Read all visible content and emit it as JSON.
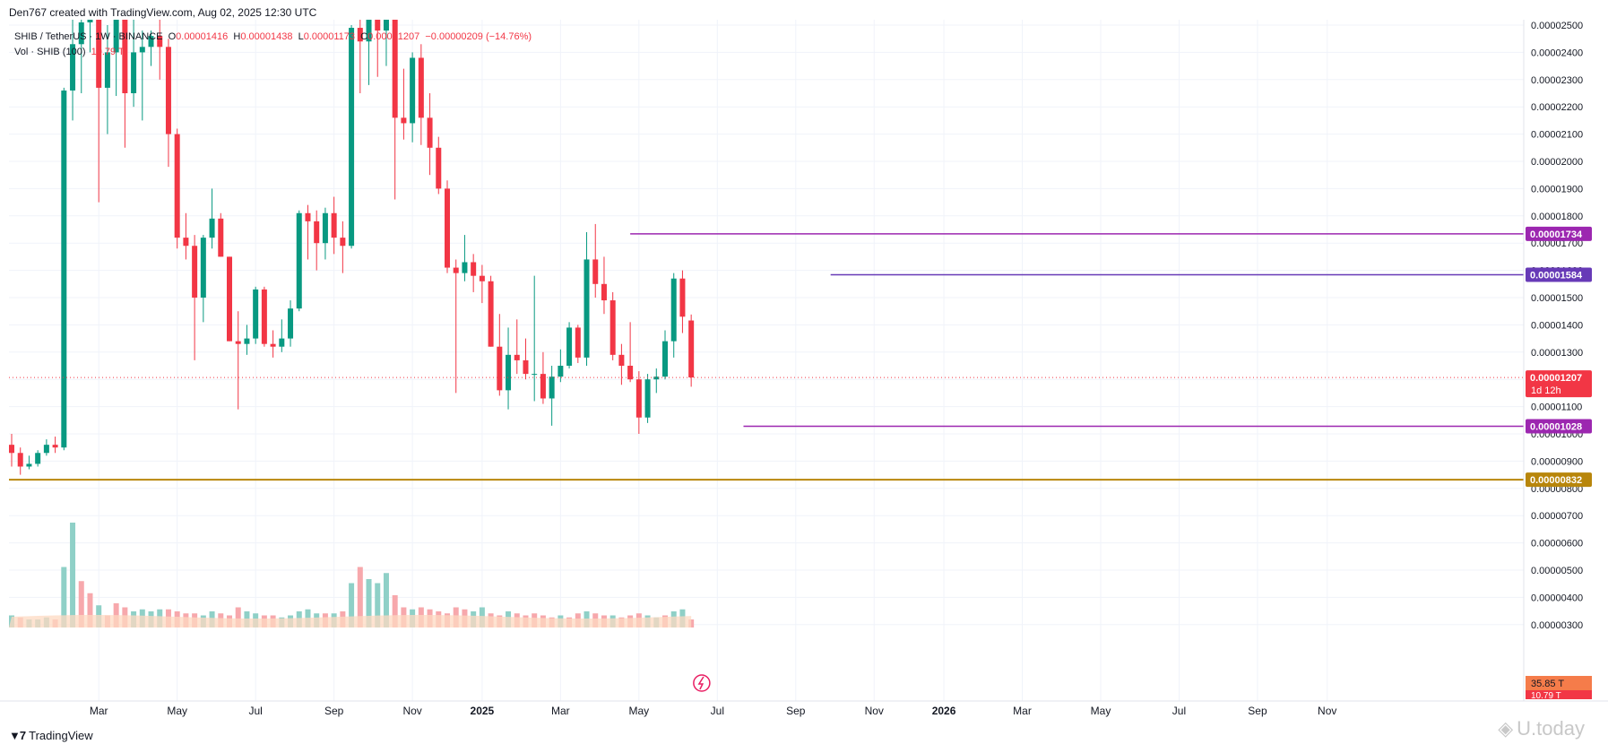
{
  "header": {
    "created_by": "Den767 created with TradingView.com, Aug 02, 2025 12:30 UTC"
  },
  "legend": {
    "symbol_line": "SHIB / TetherUS · 1W · BINANCE",
    "o_label": "O",
    "o_value": "0.00001416",
    "h_label": "H",
    "h_value": "0.00001438",
    "l_label": "L",
    "l_value": "0.00001173",
    "c_label": "C",
    "c_value": "0.00001207",
    "change": "−0.00000209 (−14.76%)",
    "vol_line": "Vol · SHIB (100)",
    "vol_value": "10.79 T",
    "vol_avg": "35.85 T"
  },
  "footer": {
    "brand": "TradingView",
    "watermark": "U.today"
  },
  "colors": {
    "up": "#089981",
    "down": "#f23645",
    "purple_line": "#9c27b0",
    "indigo_line": "#673ab7",
    "gold_line": "#b8860b",
    "vol_up": "#8fd0c7",
    "vol_down": "#f7a8ac",
    "vol_ma": "#fdd9c2"
  },
  "chart_data": {
    "type": "candlestick",
    "symbol": "SHIB / TetherUS",
    "interval": "1W",
    "exchange": "BINANCE",
    "y_axis": {
      "min": 2.5e-06,
      "max": 2.5e-05,
      "ticks": [
        "0.00002500",
        "0.00002400",
        "0.00002300",
        "0.00002200",
        "0.00002100",
        "0.00002000",
        "0.00001900",
        "0.00001800",
        "0.00001700",
        "0.00001600",
        "0.00001500",
        "0.00001400",
        "0.00001300",
        "0.00001200",
        "0.00001100",
        "0.00001000",
        "0.00000900",
        "0.00000800",
        "0.00000700",
        "0.00000600",
        "0.00000500",
        "0.00000400",
        "0.00000300"
      ]
    },
    "x_axis": {
      "labels": [
        {
          "label": "Mar",
          "week": 10
        },
        {
          "label": "May",
          "week": 19
        },
        {
          "label": "Jul",
          "week": 28
        },
        {
          "label": "Sep",
          "week": 37
        },
        {
          "label": "Nov",
          "week": 46
        },
        {
          "label": "2025",
          "week": 54
        },
        {
          "label": "Mar",
          "week": 63
        },
        {
          "label": "May",
          "week": 72
        },
        {
          "label": "Jul",
          "week": 81
        },
        {
          "label": "Sep",
          "week": 90
        },
        {
          "label": "Nov",
          "week": 99
        },
        {
          "label": "2026",
          "week": 107
        },
        {
          "label": "Mar",
          "week": 116
        },
        {
          "label": "May",
          "week": 125
        },
        {
          "label": "Jul",
          "week": 134
        },
        {
          "label": "Sep",
          "week": 143
        },
        {
          "label": "Nov",
          "week": 151
        }
      ]
    },
    "horizontal_lines": [
      {
        "price": 1.734e-05,
        "label": "0.00001734",
        "color": "#9c27b0",
        "start_week": 71
      },
      {
        "price": 1.584e-05,
        "label": "0.00001584",
        "color": "#673ab7",
        "start_week": 94
      },
      {
        "price": 1.028e-05,
        "label": "0.00001028",
        "color": "#9c27b0",
        "start_week": 84
      },
      {
        "price": 8.32e-06,
        "label": "0.00000832",
        "color": "#b8860b",
        "start_week": 0
      }
    ],
    "last_price": {
      "price": 1.207e-05,
      "label": "0.00001207",
      "countdown": "1d 12h"
    },
    "candles": [
      [
        9.6e-06,
        1e-05,
        8.8e-06,
        9.3e-06
      ],
      [
        9.3e-06,
        9.5e-06,
        8.5e-06,
        8.8e-06
      ],
      [
        8.8e-06,
        9.2e-06,
        8.7e-06,
        8.9e-06
      ],
      [
        8.9e-06,
        9.4e-06,
        8.8e-06,
        9.3e-06
      ],
      [
        9.3e-06,
        9.8e-06,
        9.2e-06,
        9.6e-06
      ],
      [
        9.6e-06,
        9.9e-06,
        9.3e-06,
        9.5e-06
      ],
      [
        9.5e-06,
        2.27e-05,
        9.4e-06,
        2.26e-05
      ],
      [
        2.26e-05,
        2.62e-05,
        2.15e-05,
        2.43e-05
      ],
      [
        2.43e-05,
        2.7e-05,
        2.25e-05,
        2.51e-05
      ],
      [
        2.51e-05,
        2.9e-05,
        2.4e-05,
        2.68e-05
      ],
      [
        2.68e-05,
        2.75e-05,
        1.85e-05,
        2.27e-05
      ],
      [
        2.27e-05,
        2.5e-05,
        2.1e-05,
        2.4e-05
      ],
      [
        2.4e-05,
        2.65e-05,
        2.24e-05,
        2.55e-05
      ],
      [
        2.55e-05,
        2.6e-05,
        2.05e-05,
        2.25e-05
      ],
      [
        2.25e-05,
        2.52e-05,
        2.2e-05,
        2.4e-05
      ],
      [
        2.4e-05,
        2.48e-05,
        2.15e-05,
        2.42e-05
      ],
      [
        2.42e-05,
        2.48e-05,
        2.35e-05,
        2.46e-05
      ],
      [
        2.46e-05,
        2.6e-05,
        2.3e-05,
        2.42e-05
      ],
      [
        2.42e-05,
        2.45e-05,
        1.98e-05,
        2.1e-05
      ],
      [
        2.1e-05,
        2.12e-05,
        1.68e-05,
        1.72e-05
      ],
      [
        1.72e-05,
        1.81e-05,
        1.64e-05,
        1.69e-05
      ],
      [
        1.69e-05,
        1.73e-05,
        1.27e-05,
        1.5e-05
      ],
      [
        1.5e-05,
        1.73e-05,
        1.41e-05,
        1.72e-05
      ],
      [
        1.72e-05,
        1.9e-05,
        1.68e-05,
        1.79e-05
      ],
      [
        1.79e-05,
        1.81e-05,
        1.65e-05,
        1.65e-05
      ],
      [
        1.65e-05,
        1.65e-05,
        1.34e-05,
        1.34e-05
      ],
      [
        1.34e-05,
        1.45e-05,
        1.09e-05,
        1.33e-05
      ],
      [
        1.33e-05,
        1.4e-05,
        1.29e-05,
        1.35e-05
      ],
      [
        1.35e-05,
        1.54e-05,
        1.33e-05,
        1.53e-05
      ],
      [
        1.53e-05,
        1.54e-05,
        1.32e-05,
        1.33e-05
      ],
      [
        1.33e-05,
        1.38e-05,
        1.28e-05,
        1.32e-05
      ],
      [
        1.32e-05,
        1.42e-05,
        1.3e-05,
        1.35e-05
      ],
      [
        1.35e-05,
        1.49e-05,
        1.32e-05,
        1.46e-05
      ],
      [
        1.46e-05,
        1.82e-05,
        1.45e-05,
        1.81e-05
      ],
      [
        1.81e-05,
        1.84e-05,
        1.64e-05,
        1.78e-05
      ],
      [
        1.78e-05,
        1.82e-05,
        1.6e-05,
        1.7e-05
      ],
      [
        1.7e-05,
        1.83e-05,
        1.64e-05,
        1.81e-05
      ],
      [
        1.81e-05,
        1.87e-05,
        1.66e-05,
        1.72e-05
      ],
      [
        1.72e-05,
        1.78e-05,
        1.59e-05,
        1.69e-05
      ],
      [
        1.69e-05,
        2.5e-05,
        1.68e-05,
        2.49e-05
      ],
      [
        2.49e-05,
        2.62e-05,
        2.25e-05,
        2.44e-05
      ],
      [
        2.44e-05,
        2.72e-05,
        2.28e-05,
        2.6e-05
      ],
      [
        2.6e-05,
        2.67e-05,
        2.31e-05,
        2.48e-05
      ],
      [
        2.48e-05,
        2.7e-05,
        2.35e-05,
        2.65e-05
      ],
      [
        2.65e-05,
        2.65e-05,
        1.86e-05,
        2.16e-05
      ],
      [
        2.16e-05,
        2.34e-05,
        2.08e-05,
        2.14e-05
      ],
      [
        2.14e-05,
        2.4e-05,
        2.07e-05,
        2.38e-05
      ],
      [
        2.38e-05,
        2.43e-05,
        2.06e-05,
        2.16e-05
      ],
      [
        2.16e-05,
        2.25e-05,
        1.95e-05,
        2.05e-05
      ],
      [
        2.05e-05,
        2.09e-05,
        1.88e-05,
        1.9e-05
      ],
      [
        1.9e-05,
        1.93e-05,
        1.59e-05,
        1.61e-05
      ],
      [
        1.61e-05,
        1.64e-05,
        1.15e-05,
        1.59e-05
      ],
      [
        1.59e-05,
        1.73e-05,
        1.56e-05,
        1.63e-05
      ],
      [
        1.63e-05,
        1.66e-05,
        1.52e-05,
        1.58e-05
      ],
      [
        1.58e-05,
        1.62e-05,
        1.48e-05,
        1.56e-05
      ],
      [
        1.56e-05,
        1.58e-05,
        1.32e-05,
        1.32e-05
      ],
      [
        1.32e-05,
        1.44e-05,
        1.14e-05,
        1.16e-05
      ],
      [
        1.16e-05,
        1.39e-05,
        1.09e-05,
        1.29e-05
      ],
      [
        1.29e-05,
        1.42e-05,
        1.22e-05,
        1.27e-05
      ],
      [
        1.27e-05,
        1.35e-05,
        1.2e-05,
        1.22e-05
      ],
      [
        1.22e-05,
        1.58e-05,
        1.12e-05,
        1.22e-05
      ],
      [
        1.22e-05,
        1.3e-05,
        1.11e-05,
        1.13e-05
      ],
      [
        1.13e-05,
        1.25e-05,
        1.03e-05,
        1.21e-05
      ],
      [
        1.21e-05,
        1.31e-05,
        1.19e-05,
        1.25e-05
      ],
      [
        1.25e-05,
        1.41e-05,
        1.24e-05,
        1.39e-05
      ],
      [
        1.39e-05,
        1.4e-05,
        1.26e-05,
        1.28e-05
      ],
      [
        1.28e-05,
        1.74e-05,
        1.25e-05,
        1.64e-05
      ],
      [
        1.64e-05,
        1.77e-05,
        1.5e-05,
        1.55e-05
      ],
      [
        1.55e-05,
        1.65e-05,
        1.44e-05,
        1.49e-05
      ],
      [
        1.49e-05,
        1.52e-05,
        1.27e-05,
        1.29e-05
      ],
      [
        1.29e-05,
        1.33e-05,
        1.18e-05,
        1.25e-05
      ],
      [
        1.25e-05,
        1.41e-05,
        1.19e-05,
        1.2e-05
      ],
      [
        1.2e-05,
        1.23e-05,
        1e-05,
        1.06e-05
      ],
      [
        1.06e-05,
        1.22e-05,
        1.04e-05,
        1.2e-05
      ],
      [
        1.2e-05,
        1.24e-05,
        1.15e-05,
        1.21e-05
      ],
      [
        1.21e-05,
        1.38e-05,
        1.2e-05,
        1.34e-05
      ],
      [
        1.34e-05,
        1.59e-05,
        1.28e-05,
        1.57e-05
      ],
      [
        1.57e-05,
        1.6e-05,
        1.37e-05,
        1.43e-05
      ],
      [
        1.416e-05,
        1.438e-05,
        1.173e-05,
        1.207e-05
      ]
    ],
    "volume_scale_max": 72,
    "volume": [
      [
        6,
        1
      ],
      [
        5,
        0
      ],
      [
        4,
        1
      ],
      [
        4,
        1
      ],
      [
        5,
        1
      ],
      [
        4,
        0
      ],
      [
        30,
        1
      ],
      [
        52,
        1
      ],
      [
        23,
        0
      ],
      [
        17,
        0
      ],
      [
        11,
        1
      ],
      [
        6,
        0
      ],
      [
        12,
        0
      ],
      [
        10,
        0
      ],
      [
        8,
        1
      ],
      [
        9,
        1
      ],
      [
        8,
        1
      ],
      [
        9,
        1
      ],
      [
        9,
        0
      ],
      [
        8,
        0
      ],
      [
        7,
        0
      ],
      [
        7,
        0
      ],
      [
        6,
        1
      ],
      [
        8,
        1
      ],
      [
        7,
        0
      ],
      [
        6,
        0
      ],
      [
        10,
        0
      ],
      [
        8,
        1
      ],
      [
        7,
        1
      ],
      [
        6,
        0
      ],
      [
        6,
        0
      ],
      [
        5,
        1
      ],
      [
        6,
        1
      ],
      [
        8,
        1
      ],
      [
        9,
        1
      ],
      [
        7,
        1
      ],
      [
        7,
        0
      ],
      [
        7,
        1
      ],
      [
        8,
        0
      ],
      [
        22,
        1
      ],
      [
        30,
        0
      ],
      [
        24,
        1
      ],
      [
        22,
        1
      ],
      [
        27,
        1
      ],
      [
        16,
        0
      ],
      [
        10,
        0
      ],
      [
        9,
        1
      ],
      [
        10,
        0
      ],
      [
        9,
        0
      ],
      [
        8,
        0
      ],
      [
        7,
        0
      ],
      [
        10,
        0
      ],
      [
        9,
        0
      ],
      [
        8,
        1
      ],
      [
        10,
        1
      ],
      [
        7,
        0
      ],
      [
        6,
        0
      ],
      [
        8,
        1
      ],
      [
        7,
        0
      ],
      [
        6,
        0
      ],
      [
        7,
        0
      ],
      [
        6,
        0
      ],
      [
        5,
        0
      ],
      [
        6,
        1
      ],
      [
        5,
        0
      ],
      [
        7,
        0
      ],
      [
        8,
        1
      ],
      [
        7,
        0
      ],
      [
        6,
        0
      ],
      [
        6,
        1
      ],
      [
        5,
        0
      ],
      [
        6,
        0
      ],
      [
        7,
        0
      ],
      [
        6,
        1
      ],
      [
        5,
        1
      ],
      [
        6,
        0
      ],
      [
        8,
        1
      ],
      [
        9,
        1
      ],
      [
        4,
        0
      ]
    ]
  }
}
